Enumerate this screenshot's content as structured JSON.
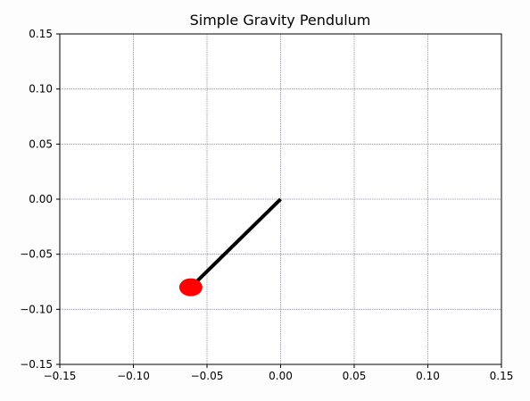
{
  "chart_data": {
    "type": "line",
    "title": "Simple Gravity Pendulum",
    "xlabel": "",
    "ylabel": "",
    "xlim": [
      -0.15,
      0.15
    ],
    "ylim": [
      -0.15,
      0.15
    ],
    "xticks": [
      -0.15,
      -0.1,
      -0.05,
      0.0,
      0.05,
      0.1,
      0.15
    ],
    "yticks": [
      -0.15,
      -0.1,
      -0.05,
      0.0,
      0.05,
      0.1,
      0.15
    ],
    "xtick_labels": [
      "−0.15",
      "−0.10",
      "−0.05",
      "0.00",
      "0.05",
      "0.10",
      "0.15"
    ],
    "ytick_labels": [
      "−0.15",
      "−0.10",
      "−0.05",
      "0.00",
      "0.05",
      "0.10",
      "0.15"
    ],
    "grid": true,
    "series": [
      {
        "role": "rod",
        "x": [
          0.0,
          -0.061
        ],
        "y": [
          0.0,
          -0.08
        ],
        "color": "#000000"
      },
      {
        "role": "bob",
        "x": [
          -0.061
        ],
        "y": [
          -0.08
        ],
        "color": "#ff0000"
      }
    ],
    "colors": {
      "grid": "#8e8ea6",
      "background": "#fdfdfd",
      "axes_face": "#ffffff"
    }
  }
}
